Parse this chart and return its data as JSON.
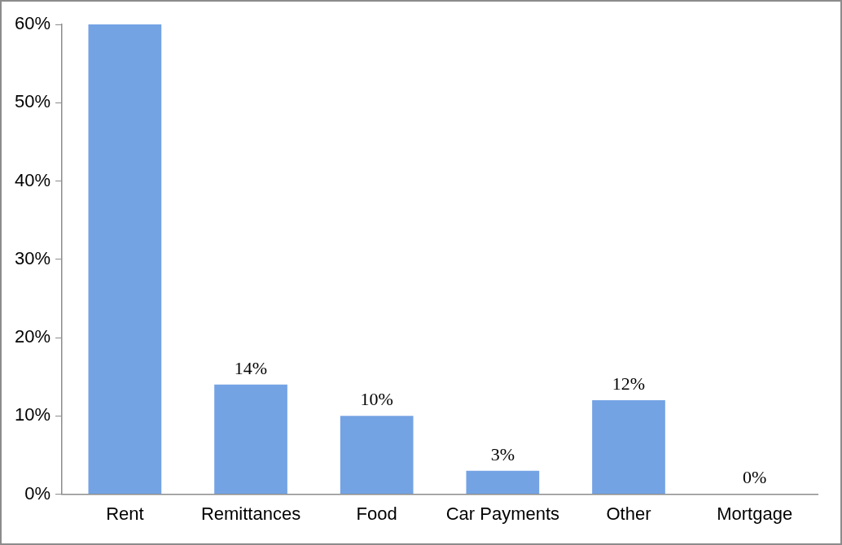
{
  "chart_data": {
    "type": "bar",
    "categories": [
      "Rent",
      "Remittances",
      "Food",
      "Car Payments",
      "Other",
      "Mortgage"
    ],
    "values": [
      60,
      14,
      10,
      3,
      12,
      0
    ],
    "value_labels": [
      null,
      "14%",
      "10%",
      "3%",
      "12%",
      "0%"
    ],
    "color": "#74a3e4",
    "ylim": [
      0,
      60
    ],
    "yticks": [
      {
        "value": 0,
        "label": "0%"
      },
      {
        "value": 10,
        "label": "10%"
      },
      {
        "value": 20,
        "label": "20%"
      },
      {
        "value": 30,
        "label": "30%"
      },
      {
        "value": 40,
        "label": "40%"
      },
      {
        "value": 50,
        "label": "50%"
      },
      {
        "value": 60,
        "label": "60%"
      }
    ],
    "grid": false,
    "legend": false
  }
}
